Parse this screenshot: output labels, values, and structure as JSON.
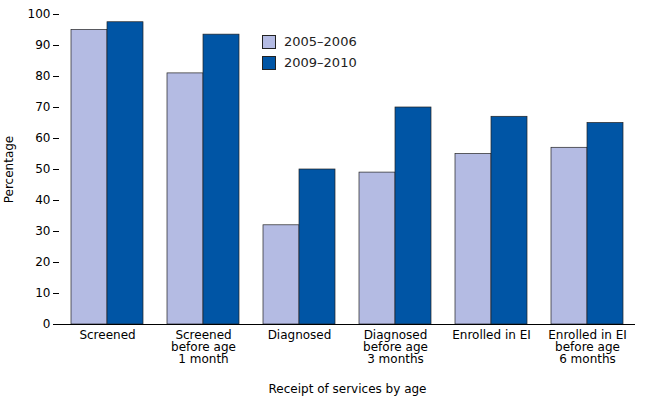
{
  "chart_data": {
    "type": "bar",
    "x_label": "Receipt of services by age",
    "y_label": "Percentage",
    "categories": [
      "Screened",
      "Screened\nbefore age\n1 month",
      "Diagnosed",
      "Diagnosed\nbefore age\n3 months",
      "Enrolled in EI",
      "Enrolled in EI\nbefore age\n6 months"
    ],
    "series": [
      {
        "name": "2005–2006",
        "color": "#b4bbe3",
        "values": [
          95,
          81,
          32,
          49,
          55,
          57
        ]
      },
      {
        "name": "2009–2010",
        "color": "#0055a5",
        "values": [
          97.5,
          93.5,
          50,
          70,
          67,
          65
        ]
      }
    ],
    "ylim": [
      0,
      100
    ],
    "yticks": [
      0,
      10,
      20,
      30,
      40,
      50,
      60,
      70,
      80,
      90,
      100
    ],
    "grid": false,
    "legend": "top"
  }
}
